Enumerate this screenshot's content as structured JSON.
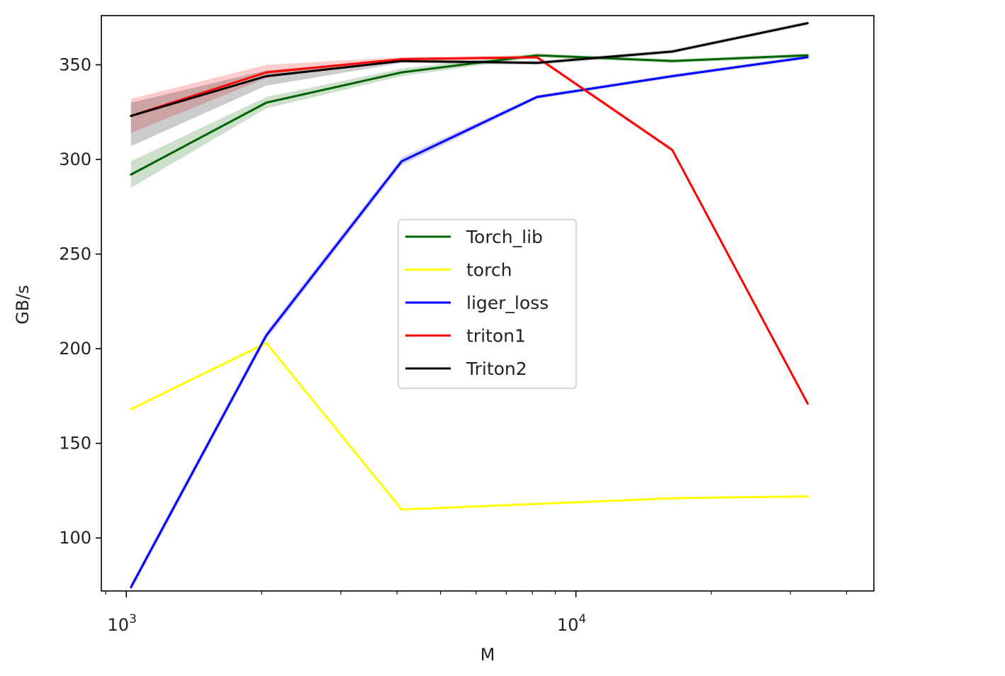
{
  "chart_data": {
    "type": "line",
    "title": "",
    "xlabel": "M",
    "ylabel": "GB/s",
    "xscale": "log",
    "xlim": [
      880,
      46000
    ],
    "ylim": [
      72,
      376
    ],
    "x": [
      1024,
      2048,
      4096,
      8192,
      16384,
      32768
    ],
    "xticks": [
      {
        "value": 1000,
        "base": "10",
        "exp": "3"
      },
      {
        "value": 10000,
        "base": "10",
        "exp": "4"
      }
    ],
    "yticks": [
      100,
      150,
      200,
      250,
      300,
      350
    ],
    "grid": false,
    "legend_position": "center",
    "series": [
      {
        "name": "Torch_lib",
        "color": "#006400",
        "values": [
          292,
          330,
          346,
          355,
          352,
          355
        ],
        "band_low": [
          285,
          327,
          344,
          354,
          351,
          354
        ],
        "band_high": [
          299,
          333,
          348,
          356,
          353,
          356
        ]
      },
      {
        "name": "torch",
        "color": "#ffff00",
        "values": [
          168,
          203,
          115,
          118,
          121,
          122
        ]
      },
      {
        "name": "liger_loss",
        "color": "#0000ff",
        "values": [
          74,
          207,
          299,
          333,
          344,
          354
        ],
        "band_low": [
          72,
          205,
          297,
          332,
          343,
          353
        ],
        "band_high": [
          76,
          209,
          301,
          334,
          345,
          355
        ]
      },
      {
        "name": "triton1",
        "color": "#ff0000",
        "values": [
          323,
          346,
          353,
          354,
          305,
          171
        ],
        "band_low": [
          314,
          343,
          352,
          353,
          304,
          170
        ],
        "band_high": [
          332,
          350,
          354,
          355,
          306,
          172
        ]
      },
      {
        "name": "Triton2",
        "color": "#000000",
        "values": [
          323,
          344,
          352,
          351,
          357,
          372
        ],
        "band_low": [
          307,
          339,
          351,
          350,
          356,
          371
        ],
        "band_high": [
          330,
          347,
          353,
          352,
          358,
          373
        ]
      }
    ]
  }
}
